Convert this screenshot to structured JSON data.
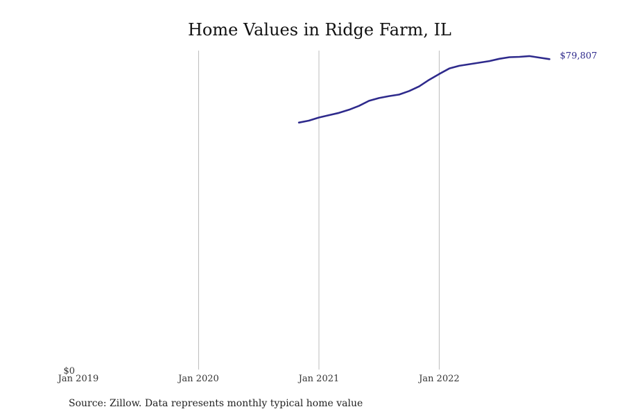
{
  "chart_data": {
    "type": "line",
    "title": "Home Values in Ridge Farm, IL",
    "xlabel": "",
    "ylabel": "",
    "source": "Source: Zillow. Data represents monthly typical home value",
    "x_ticks": [
      "Jan 2019",
      "Jan 2020",
      "Jan 2021",
      "Jan 2022"
    ],
    "y_ticks": [
      "$0"
    ],
    "xlim": [
      "2019-01",
      "2022-12"
    ],
    "ylim": [
      0,
      82000
    ],
    "grid": "vertical",
    "line_color": "#2e2a8c",
    "end_label": "$79,807",
    "series": [
      {
        "x": [
          "2020-11",
          "2020-12",
          "2021-01",
          "2021-02",
          "2021-03",
          "2021-04",
          "2021-05",
          "2021-06",
          "2021-07",
          "2021-08",
          "2021-09",
          "2021-10",
          "2021-11",
          "2021-12",
          "2022-01",
          "2022-02",
          "2022-03",
          "2022-04",
          "2022-05",
          "2022-06",
          "2022-07",
          "2022-08",
          "2022-09",
          "2022-10",
          "2022-11",
          "2022-12"
        ],
        "values": [
          63500,
          64000,
          64800,
          65400,
          66000,
          66800,
          67800,
          69100,
          69800,
          70300,
          70700,
          71600,
          72800,
          74500,
          76000,
          77400,
          78100,
          78500,
          78900,
          79300,
          79900,
          80300,
          80400,
          80600,
          80200,
          79807
        ]
      }
    ]
  }
}
